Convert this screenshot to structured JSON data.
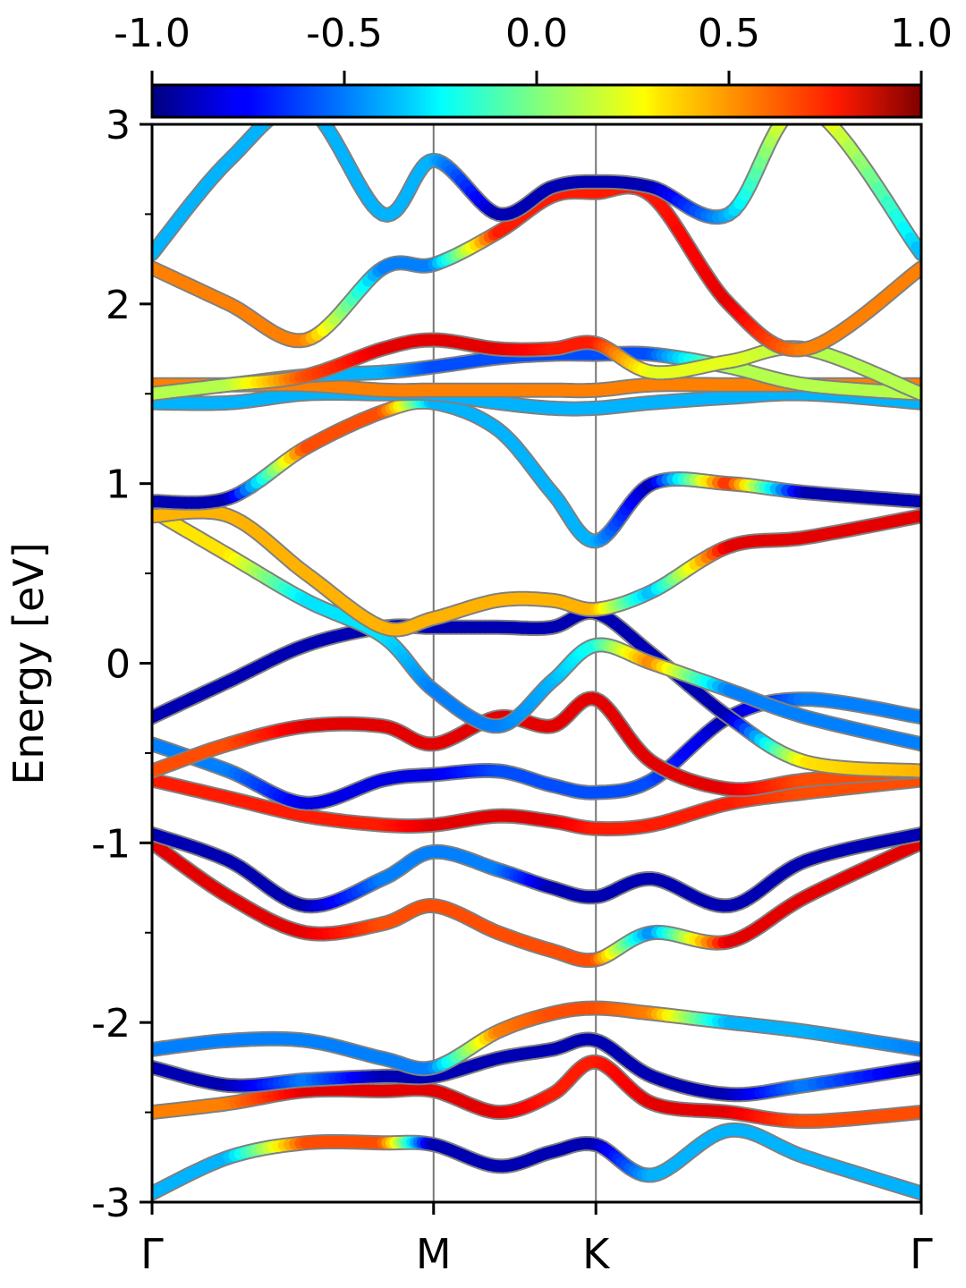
{
  "chart_data": {
    "type": "line",
    "ylabel": "Energy [eV]",
    "ylim": [
      -3,
      3
    ],
    "yticks": [
      -3,
      -2,
      -1,
      0,
      1,
      2,
      3
    ],
    "ytick_labels": [
      "-3",
      "-2",
      "-1",
      "0",
      "1",
      "2",
      "3"
    ],
    "x_kpath": [
      {
        "label": "Γ",
        "pos": 0.0
      },
      {
        "label": "M",
        "pos": 0.366
      },
      {
        "label": "K",
        "pos": 0.577
      },
      {
        "label": "Γ",
        "pos": 1.0
      }
    ],
    "colorbar": {
      "range": [
        -1.0,
        1.0
      ],
      "ticks": [
        -1.0,
        -0.5,
        0.0,
        0.5,
        1.0
      ],
      "tick_labels": [
        "-1.0",
        "-0.5",
        "0.0",
        "0.5",
        "1.0"
      ],
      "colormap": "jet"
    },
    "grid": false,
    "bands": [
      {
        "x": [
          0,
          0.1,
          0.2,
          0.3,
          0.366,
          0.45,
          0.52,
          0.577,
          0.65,
          0.75,
          0.85,
          1.0
        ],
        "energy": [
          -2.95,
          -2.75,
          -2.67,
          -2.67,
          -2.68,
          -2.8,
          -2.72,
          -2.68,
          -2.85,
          -2.6,
          -2.75,
          -2.95
        ],
        "color_value": [
          -0.4,
          -0.4,
          0.6,
          0.6,
          -0.9,
          -0.9,
          -0.9,
          -0.9,
          -0.4,
          -0.4,
          -0.4,
          -0.4
        ]
      },
      {
        "x": [
          0,
          0.1,
          0.2,
          0.3,
          0.366,
          0.45,
          0.52,
          0.577,
          0.65,
          0.75,
          0.85,
          1.0
        ],
        "energy": [
          -2.5,
          -2.45,
          -2.38,
          -2.38,
          -2.38,
          -2.5,
          -2.4,
          -2.22,
          -2.45,
          -2.5,
          -2.55,
          -2.5
        ],
        "color_value": [
          0.5,
          0.5,
          0.8,
          0.8,
          0.8,
          0.8,
          0.7,
          0.7,
          0.8,
          0.8,
          0.6,
          0.6
        ]
      },
      {
        "x": [
          0,
          0.1,
          0.2,
          0.3,
          0.366,
          0.45,
          0.52,
          0.577,
          0.65,
          0.75,
          0.85,
          1.0
        ],
        "energy": [
          -2.25,
          -2.35,
          -2.32,
          -2.3,
          -2.3,
          -2.2,
          -2.15,
          -2.1,
          -2.3,
          -2.4,
          -2.35,
          -2.25
        ],
        "color_value": [
          -0.9,
          -0.9,
          -0.5,
          -0.9,
          -0.9,
          -0.9,
          -0.9,
          -0.9,
          -0.9,
          -0.9,
          -0.5,
          -0.9
        ]
      },
      {
        "x": [
          0,
          0.1,
          0.2,
          0.3,
          0.366,
          0.45,
          0.52,
          0.577,
          0.65,
          0.75,
          0.85,
          1.0
        ],
        "energy": [
          -2.15,
          -2.1,
          -2.1,
          -2.2,
          -2.25,
          -2.05,
          -1.95,
          -1.92,
          -1.95,
          -2.0,
          -2.05,
          -2.15
        ],
        "color_value": [
          -0.5,
          -0.5,
          -0.5,
          -0.5,
          -0.5,
          0.5,
          0.6,
          0.6,
          0.5,
          -0.4,
          -0.4,
          -0.5
        ]
      },
      {
        "x": [
          0,
          0.1,
          0.2,
          0.3,
          0.366,
          0.45,
          0.52,
          0.577,
          0.65,
          0.75,
          0.85,
          1.0
        ],
        "energy": [
          -1.0,
          -1.3,
          -1.5,
          -1.45,
          -1.35,
          -1.5,
          -1.6,
          -1.65,
          -1.5,
          -1.55,
          -1.3,
          -1.0
        ],
        "color_value": [
          0.8,
          0.8,
          0.8,
          0.6,
          0.6,
          0.6,
          0.6,
          0.6,
          -0.5,
          0.8,
          0.8,
          0.8
        ]
      },
      {
        "x": [
          0,
          0.1,
          0.2,
          0.3,
          0.366,
          0.45,
          0.52,
          0.577,
          0.65,
          0.75,
          0.85,
          1.0
        ],
        "energy": [
          -0.95,
          -1.1,
          -1.35,
          -1.2,
          -1.05,
          -1.15,
          -1.25,
          -1.3,
          -1.2,
          -1.35,
          -1.1,
          -0.95
        ],
        "color_value": [
          -0.9,
          -0.9,
          -0.9,
          -0.5,
          -0.5,
          -0.5,
          -0.9,
          -0.9,
          -0.9,
          -0.9,
          -0.9,
          -0.9
        ]
      },
      {
        "x": [
          0,
          0.1,
          0.2,
          0.3,
          0.366,
          0.45,
          0.52,
          0.577,
          0.65,
          0.75,
          0.85,
          1.0
        ],
        "energy": [
          -0.65,
          -0.75,
          -0.85,
          -0.9,
          -0.9,
          -0.85,
          -0.88,
          -0.92,
          -0.9,
          -0.78,
          -0.72,
          -0.65
        ],
        "color_value": [
          0.7,
          0.7,
          0.7,
          0.7,
          0.8,
          0.8,
          0.8,
          0.7,
          0.7,
          0.7,
          0.6,
          0.6
        ]
      },
      {
        "x": [
          0,
          0.1,
          0.2,
          0.3,
          0.366,
          0.45,
          0.52,
          0.577,
          0.65,
          0.75,
          0.85,
          1.0
        ],
        "energy": [
          -0.45,
          -0.6,
          -0.78,
          -0.65,
          -0.62,
          -0.6,
          -0.68,
          -0.72,
          -0.65,
          -0.3,
          -0.2,
          -0.3
        ],
        "color_value": [
          -0.5,
          -0.5,
          -0.8,
          -0.8,
          -0.8,
          -0.6,
          -0.6,
          -0.6,
          -0.6,
          -0.9,
          -0.5,
          -0.5
        ]
      },
      {
        "x": [
          0,
          0.1,
          0.2,
          0.3,
          0.366,
          0.45,
          0.52,
          0.577,
          0.65,
          0.75,
          0.85,
          1.0
        ],
        "energy": [
          -0.6,
          -0.45,
          -0.35,
          -0.35,
          -0.45,
          -0.3,
          -0.35,
          -0.2,
          -0.55,
          -0.7,
          -0.65,
          -0.6
        ],
        "color_value": [
          0.6,
          0.6,
          0.8,
          0.8,
          0.8,
          0.8,
          0.8,
          0.8,
          0.8,
          0.8,
          0.6,
          0.6
        ]
      },
      {
        "x": [
          0,
          0.1,
          0.2,
          0.3,
          0.366,
          0.45,
          0.52,
          0.577,
          0.65,
          0.75,
          0.85,
          1.0
        ],
        "energy": [
          -0.3,
          -0.1,
          0.1,
          0.2,
          0.2,
          0.2,
          0.2,
          0.28,
          0.05,
          -0.3,
          -0.55,
          -0.6
        ],
        "color_value": [
          -0.9,
          -0.9,
          -0.9,
          -0.9,
          -0.9,
          -0.9,
          -0.9,
          -0.9,
          -0.9,
          -0.9,
          0.3,
          0.4
        ]
      },
      {
        "x": [
          0,
          0.1,
          0.2,
          0.3,
          0.366,
          0.45,
          0.52,
          0.577,
          0.65,
          0.75,
          0.85,
          1.0
        ],
        "energy": [
          0.85,
          0.6,
          0.35,
          0.15,
          -0.15,
          -0.35,
          -0.1,
          0.1,
          0.0,
          -0.15,
          -0.3,
          -0.45
        ],
        "color_value": [
          0.3,
          0.3,
          -0.3,
          -0.3,
          -0.5,
          -0.5,
          -0.4,
          -0.2,
          0.5,
          -0.5,
          -0.5,
          -0.5
        ]
      },
      {
        "x": [
          0,
          0.1,
          0.2,
          0.3,
          0.366,
          0.45,
          0.52,
          0.577,
          0.65,
          0.75,
          0.85,
          1.0
        ],
        "energy": [
          0.82,
          0.82,
          0.5,
          0.2,
          0.25,
          0.35,
          0.35,
          0.3,
          0.4,
          0.65,
          0.7,
          0.82
        ],
        "color_value": [
          0.4,
          0.4,
          0.4,
          0.4,
          0.4,
          0.4,
          0.4,
          0.4,
          -0.4,
          0.8,
          0.8,
          0.8
        ]
      },
      {
        "x": [
          0,
          0.1,
          0.2,
          0.3,
          0.366,
          0.45,
          0.52,
          0.577,
          0.65,
          0.75,
          0.85,
          1.0
        ],
        "energy": [
          0.9,
          0.92,
          1.2,
          1.4,
          1.45,
          1.3,
          0.95,
          0.68,
          1.0,
          1.0,
          0.95,
          0.9
        ],
        "color_value": [
          -0.9,
          -0.9,
          0.6,
          0.6,
          -0.4,
          -0.4,
          -0.4,
          -0.4,
          -0.9,
          0.7,
          -0.9,
          -0.9
        ]
      },
      {
        "x": [
          0,
          0.1,
          0.2,
          0.3,
          0.366,
          0.45,
          0.52,
          0.577,
          0.65,
          0.75,
          0.85,
          1.0
        ],
        "energy": [
          1.45,
          1.45,
          1.5,
          1.5,
          1.5,
          1.45,
          1.42,
          1.42,
          1.45,
          1.48,
          1.5,
          1.45
        ],
        "color_value": [
          -0.4,
          -0.4,
          -0.4,
          -0.4,
          -0.4,
          -0.4,
          -0.4,
          -0.4,
          -0.4,
          -0.4,
          -0.4,
          -0.4
        ]
      },
      {
        "x": [
          0,
          0.1,
          0.2,
          0.3,
          0.366,
          0.45,
          0.52,
          0.577,
          0.65,
          0.75,
          0.85,
          1.0
        ],
        "energy": [
          1.55,
          1.55,
          1.55,
          1.52,
          1.52,
          1.52,
          1.52,
          1.52,
          1.55,
          1.55,
          1.55,
          1.55
        ],
        "color_value": [
          0.5,
          0.5,
          0.5,
          0.5,
          0.5,
          0.5,
          0.5,
          0.5,
          0.5,
          0.5,
          0.5,
          0.5
        ]
      },
      {
        "x": [
          0,
          0.1,
          0.2,
          0.3,
          0.366,
          0.45,
          0.52,
          0.577,
          0.65,
          0.75,
          0.85,
          1.0
        ],
        "energy": [
          1.5,
          1.55,
          1.6,
          1.62,
          1.65,
          1.7,
          1.72,
          1.72,
          1.72,
          1.65,
          1.55,
          1.5
        ],
        "color_value": [
          -0.4,
          -0.4,
          -0.4,
          -0.4,
          -0.6,
          -0.6,
          -0.6,
          -0.6,
          -0.6,
          0.1,
          0.1,
          0.1
        ]
      },
      {
        "x": [
          0,
          0.1,
          0.2,
          0.3,
          0.366,
          0.45,
          0.52,
          0.577,
          0.65,
          0.75,
          0.85,
          1.0
        ],
        "energy": [
          1.5,
          1.55,
          1.6,
          1.75,
          1.8,
          1.75,
          1.75,
          1.78,
          1.62,
          1.68,
          1.75,
          1.5
        ],
        "color_value": [
          0.1,
          0.1,
          0.6,
          0.8,
          0.8,
          0.8,
          0.7,
          0.7,
          0.2,
          0.2,
          0.1,
          0.1
        ]
      },
      {
        "x": [
          0,
          0.1,
          0.2,
          0.3,
          0.366,
          0.45,
          0.52,
          0.577,
          0.65,
          0.75,
          0.85,
          1.0
        ],
        "energy": [
          2.2,
          2.0,
          1.8,
          2.2,
          2.22,
          2.4,
          2.6,
          2.62,
          2.6,
          2.0,
          1.75,
          2.2
        ],
        "color_value": [
          0.5,
          0.5,
          0.5,
          -0.5,
          -0.5,
          0.7,
          0.7,
          0.7,
          0.7,
          0.8,
          0.5,
          0.5
        ]
      },
      {
        "x": [
          0,
          0.1,
          0.2,
          0.3,
          0.366,
          0.45,
          0.52,
          0.577,
          0.65,
          0.75,
          0.85,
          1.0
        ],
        "energy": [
          2.28,
          2.8,
          3.1,
          2.5,
          2.8,
          2.5,
          2.65,
          2.68,
          2.65,
          2.5,
          3.1,
          2.28
        ],
        "color_value": [
          -0.4,
          -0.4,
          -0.4,
          -0.4,
          -0.4,
          -0.9,
          -0.9,
          -0.9,
          -0.9,
          -0.4,
          0.4,
          -0.4
        ]
      }
    ]
  }
}
